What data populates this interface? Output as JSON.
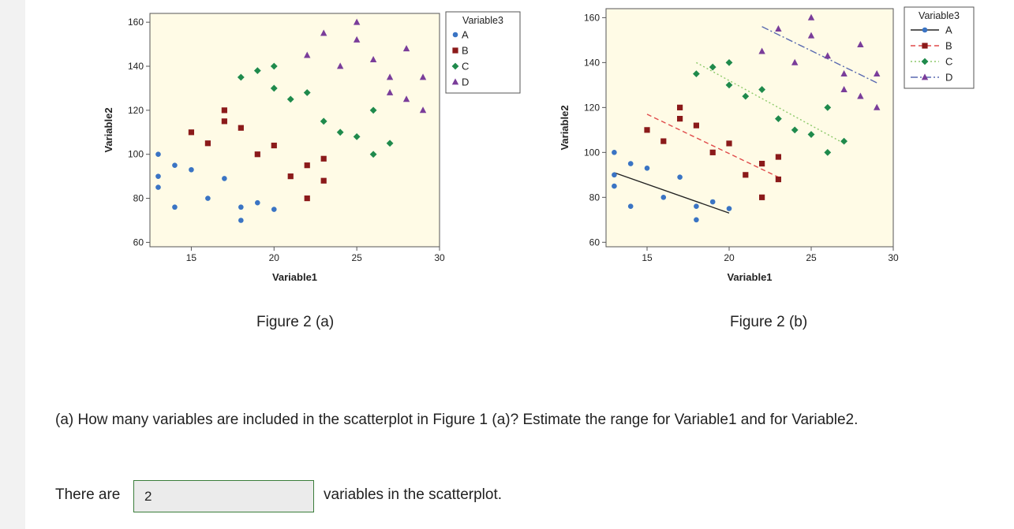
{
  "figures": {
    "a_caption": "Figure 2 (a)",
    "b_caption": "Figure 2 (b)"
  },
  "question": {
    "text": "(a) How many variables are included in the scatterplot in Figure 1 (a)? Estimate the range for Variable1 and for Variable2.",
    "answer_prefix": "There are",
    "answer_value": "2",
    "answer_suffix": "variables in the scatterplot."
  },
  "colors": {
    "plot_bg": "#fffbe6",
    "A": "#3a74c4",
    "B": "#8b1a1a",
    "C": "#1f8a4c",
    "D": "#7a3d9a",
    "B_line": "#e04a4a",
    "C_line": "#8cc96a",
    "D_line": "#5a6ab0"
  },
  "chart_data": [
    {
      "type": "scatter",
      "title": "",
      "xlabel": "Variable1",
      "ylabel": "Variable2",
      "xlim": [
        12.5,
        30
      ],
      "ylim": [
        58,
        164
      ],
      "xticks": [
        15,
        20,
        25,
        30
      ],
      "yticks": [
        60,
        80,
        100,
        120,
        140,
        160
      ],
      "legend": {
        "title": "Variable3",
        "placement": "right",
        "style": "markers"
      },
      "series": [
        {
          "name": "A",
          "marker": "circle",
          "points": [
            [
              13,
              100
            ],
            [
              13,
              90
            ],
            [
              13,
              85
            ],
            [
              14,
              95
            ],
            [
              14,
              76
            ],
            [
              15,
              93
            ],
            [
              16,
              80
            ],
            [
              17,
              89
            ],
            [
              18,
              76
            ],
            [
              18,
              70
            ],
            [
              19,
              78
            ],
            [
              20,
              75
            ]
          ]
        },
        {
          "name": "B",
          "marker": "square",
          "points": [
            [
              15,
              110
            ],
            [
              16,
              105
            ],
            [
              17,
              120
            ],
            [
              17,
              115
            ],
            [
              18,
              112
            ],
            [
              19,
              100
            ],
            [
              20,
              104
            ],
            [
              21,
              90
            ],
            [
              22,
              95
            ],
            [
              22,
              80
            ],
            [
              23,
              98
            ],
            [
              23,
              88
            ]
          ]
        },
        {
          "name": "C",
          "marker": "diamond",
          "points": [
            [
              18,
              135
            ],
            [
              19,
              138
            ],
            [
              20,
              140
            ],
            [
              20,
              130
            ],
            [
              21,
              125
            ],
            [
              22,
              128
            ],
            [
              23,
              115
            ],
            [
              24,
              110
            ],
            [
              25,
              108
            ],
            [
              26,
              120
            ],
            [
              26,
              100
            ],
            [
              27,
              105
            ]
          ]
        },
        {
          "name": "D",
          "marker": "triangle",
          "points": [
            [
              22,
              145
            ],
            [
              23,
              155
            ],
            [
              24,
              140
            ],
            [
              25,
              160
            ],
            [
              25,
              152
            ],
            [
              26,
              143
            ],
            [
              27,
              135
            ],
            [
              27,
              128
            ],
            [
              28,
              148
            ],
            [
              28,
              125
            ],
            [
              29,
              135
            ],
            [
              29,
              120
            ]
          ]
        }
      ]
    },
    {
      "type": "scatter",
      "title": "",
      "xlabel": "Variable1",
      "ylabel": "Variable2",
      "xlim": [
        12.5,
        30
      ],
      "ylim": [
        58,
        164
      ],
      "xticks": [
        15,
        20,
        25,
        30
      ],
      "yticks": [
        60,
        80,
        100,
        120,
        140,
        160
      ],
      "legend": {
        "title": "Variable3",
        "placement": "right",
        "style": "lines"
      },
      "series": [
        {
          "name": "A",
          "marker": "circle",
          "line_style": "solid",
          "fit": [
            [
              13,
              91
            ],
            [
              20,
              73
            ]
          ],
          "points": [
            [
              13,
              100
            ],
            [
              13,
              90
            ],
            [
              13,
              85
            ],
            [
              14,
              95
            ],
            [
              14,
              76
            ],
            [
              15,
              93
            ],
            [
              16,
              80
            ],
            [
              17,
              89
            ],
            [
              18,
              76
            ],
            [
              18,
              70
            ],
            [
              19,
              78
            ],
            [
              20,
              75
            ]
          ]
        },
        {
          "name": "B",
          "marker": "square",
          "line_style": "dashed",
          "fit": [
            [
              15,
              117
            ],
            [
              23,
              89
            ]
          ],
          "points": [
            [
              15,
              110
            ],
            [
              16,
              105
            ],
            [
              17,
              120
            ],
            [
              17,
              115
            ],
            [
              18,
              112
            ],
            [
              19,
              100
            ],
            [
              20,
              104
            ],
            [
              21,
              90
            ],
            [
              22,
              95
            ],
            [
              22,
              80
            ],
            [
              23,
              98
            ],
            [
              23,
              88
            ]
          ]
        },
        {
          "name": "C",
          "marker": "diamond",
          "line_style": "dotted",
          "fit": [
            [
              18,
              140
            ],
            [
              27,
              104
            ]
          ],
          "points": [
            [
              18,
              135
            ],
            [
              19,
              138
            ],
            [
              20,
              140
            ],
            [
              20,
              130
            ],
            [
              21,
              125
            ],
            [
              22,
              128
            ],
            [
              23,
              115
            ],
            [
              24,
              110
            ],
            [
              25,
              108
            ],
            [
              26,
              120
            ],
            [
              26,
              100
            ],
            [
              27,
              105
            ]
          ]
        },
        {
          "name": "D",
          "marker": "triangle",
          "line_style": "dashdot",
          "fit": [
            [
              22,
              156
            ],
            [
              29,
              131
            ]
          ],
          "points": [
            [
              22,
              145
            ],
            [
              23,
              155
            ],
            [
              24,
              140
            ],
            [
              25,
              160
            ],
            [
              25,
              152
            ],
            [
              26,
              143
            ],
            [
              27,
              135
            ],
            [
              27,
              128
            ],
            [
              28,
              148
            ],
            [
              28,
              125
            ],
            [
              29,
              135
            ],
            [
              29,
              120
            ]
          ]
        }
      ]
    }
  ]
}
